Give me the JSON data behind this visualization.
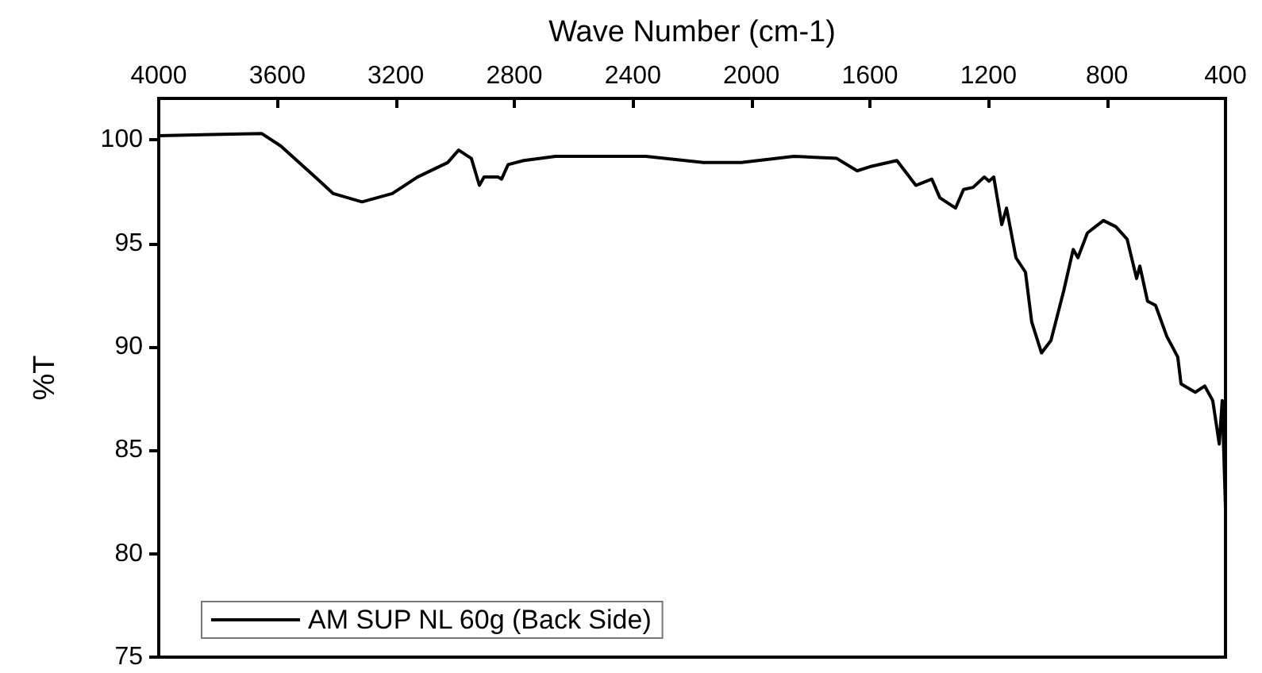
{
  "chart_data": {
    "type": "line",
    "xlabel": "Wave Number (cm-1)",
    "ylabel": "%T",
    "xlim": [
      4000,
      400
    ],
    "xticks": [
      4000,
      3600,
      3200,
      2800,
      2400,
      2000,
      1600,
      1200,
      800,
      400
    ],
    "ylim": [
      75,
      102
    ],
    "yticks": [
      75,
      80,
      85,
      90,
      95,
      100
    ],
    "grid": false,
    "legend": "bottom left",
    "marker": "none",
    "line_style": "solid",
    "series": [
      {
        "name": "AM SUP NL 60g (Back Side)",
        "color": "#000000",
        "x": [
          4000,
          3652,
          3588,
          3464,
          3411,
          3314,
          3212,
          3127,
          3025,
          2988,
          2945,
          2918,
          2902,
          2854,
          2843,
          2821,
          2768,
          2661,
          2356,
          2162,
          2034,
          1857,
          1712,
          1643,
          1600,
          1509,
          1445,
          1391,
          1364,
          1311,
          1284,
          1252,
          1214,
          1198,
          1182,
          1155,
          1139,
          1107,
          1075,
          1054,
          1021,
          989,
          946,
          914,
          898,
          866,
          812,
          770,
          732,
          700,
          689,
          663,
          636,
          598,
          561,
          550,
          502,
          470,
          443,
          421,
          411,
          400
        ],
        "values": [
          100.2,
          100.3,
          99.7,
          98.1,
          97.4,
          97.0,
          97.4,
          98.2,
          98.9,
          99.5,
          99.1,
          97.8,
          98.2,
          98.2,
          98.1,
          98.8,
          99.0,
          99.2,
          99.2,
          98.9,
          98.9,
          99.2,
          99.1,
          98.5,
          98.7,
          99.0,
          97.8,
          98.1,
          97.2,
          96.7,
          97.6,
          97.7,
          98.2,
          98.0,
          98.2,
          95.9,
          96.7,
          94.3,
          93.6,
          91.2,
          89.7,
          90.3,
          92.7,
          94.7,
          94.3,
          95.5,
          96.1,
          95.8,
          95.2,
          93.3,
          93.9,
          92.2,
          92.0,
          90.5,
          89.5,
          88.2,
          87.8,
          88.1,
          87.4,
          85.3,
          87.4,
          82.2
        ]
      }
    ]
  }
}
